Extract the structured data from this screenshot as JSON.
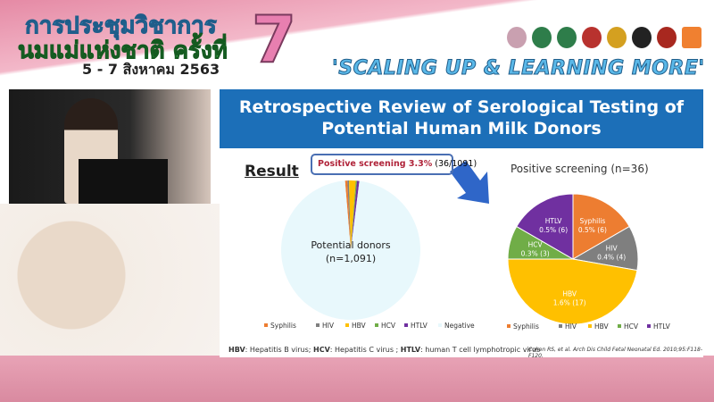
{
  "header": {
    "thai_line1": "การประชุมวิชาการ",
    "thai_line2": "นมแม่แห่งชาติ ครั้งที่",
    "date": "5 - 7 สิงหาคม 2563",
    "edition": "7",
    "slogan": "'SCALING UP & LEARNING MORE'"
  },
  "slide": {
    "title_line1": "Retrospective Review of Serological Testing of",
    "title_line2": "Potential Human Milk Donors",
    "result_label": "Result",
    "callout_bold": "Positive screening 3.3%",
    "callout_rest": " (36/1091)",
    "left_pie_label1": "Potential donors",
    "left_pie_label2": "(n=1,091)",
    "right_title": "Positive screening (n=36)",
    "abbreviations": [
      {
        "abbr": "HBV",
        "text": ": Hepatitis B virus; "
      },
      {
        "abbr": "HCV",
        "text": ": Hepatitis C virus ; "
      },
      {
        "abbr": "HTLV",
        "text": ": human T cell lymphotropic virus"
      }
    ],
    "citation": "Cohen RS, et al. Arch Dis Child Fetal Neonatal Ed. 2010;95:F118-F120."
  },
  "chart_data": [
    {
      "type": "pie",
      "categories": [
        "Syphilis",
        "HIV",
        "HBV",
        "HCV",
        "HTLV",
        "Negative"
      ],
      "values": [
        6,
        4,
        17,
        3,
        6,
        1055
      ],
      "colors": [
        "#ed7d31",
        "#7f7f7f",
        "#ffc000",
        "#70ad47",
        "#7030a0",
        "#e8f8fc"
      ],
      "legend": "bottom",
      "center_label": "Potential donors (n=1,091)"
    },
    {
      "type": "pie",
      "title": "Positive screening (n=36)",
      "categories": [
        "Syphilis",
        "HIV",
        "HBV",
        "HCV",
        "HTLV"
      ],
      "values": [
        6,
        4,
        17,
        3,
        6
      ],
      "labels": [
        "0.5% (6)",
        "0.4% (4)",
        "1.6% (17)",
        "0.3% (3)",
        "0.5% (6)"
      ],
      "colors": [
        "#ed7d31",
        "#7f7f7f",
        "#ffc000",
        "#70ad47",
        "#7030a0"
      ],
      "legend": "bottom"
    }
  ]
}
